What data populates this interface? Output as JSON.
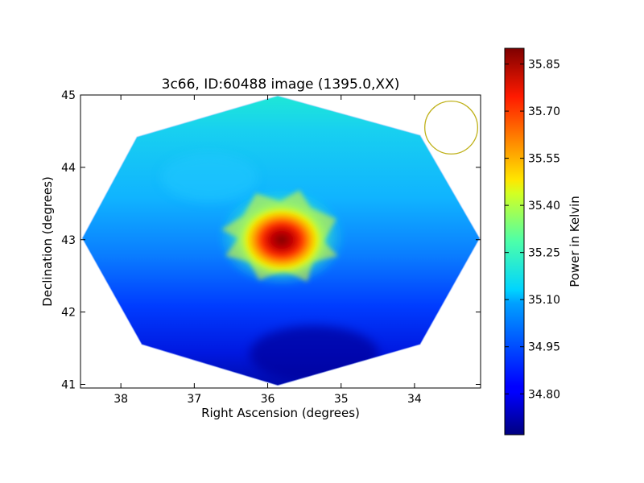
{
  "chart_data": {
    "type": "heatmap",
    "title": "3c66, ID:60488 image (1395.0,XX)",
    "xlabel": "Right Ascension (degrees)",
    "ylabel": "Declination (degrees)",
    "xlim": [
      38.55,
      33.1
    ],
    "ylim": [
      40.95,
      45.0
    ],
    "x_ticks": [
      "38",
      "37",
      "36",
      "35",
      "34"
    ],
    "x_tick_values": [
      38,
      37,
      36,
      35,
      34
    ],
    "y_ticks": [
      "41",
      "42",
      "43",
      "44",
      "45"
    ],
    "y_tick_values": [
      41,
      42,
      43,
      44,
      45
    ],
    "colorbar": {
      "label": "Power in Kelvin",
      "range": [
        34.67,
        35.9
      ],
      "ticks": [
        "34.80",
        "34.95",
        "35.10",
        "35.25",
        "35.40",
        "35.55",
        "35.70",
        "35.85"
      ],
      "tick_values": [
        34.8,
        34.95,
        35.1,
        35.25,
        35.4,
        35.55,
        35.7,
        35.85
      ]
    },
    "map": {
      "shape": "octagon",
      "background_level": 34.9,
      "peak": {
        "ra": 35.8,
        "dec": 43.0,
        "value": 35.88
      },
      "beam_circle": {
        "ra": 33.5,
        "dec": 44.55,
        "radius_deg": 0.36,
        "color": "#bfb11a"
      }
    },
    "colormap": "jet"
  }
}
